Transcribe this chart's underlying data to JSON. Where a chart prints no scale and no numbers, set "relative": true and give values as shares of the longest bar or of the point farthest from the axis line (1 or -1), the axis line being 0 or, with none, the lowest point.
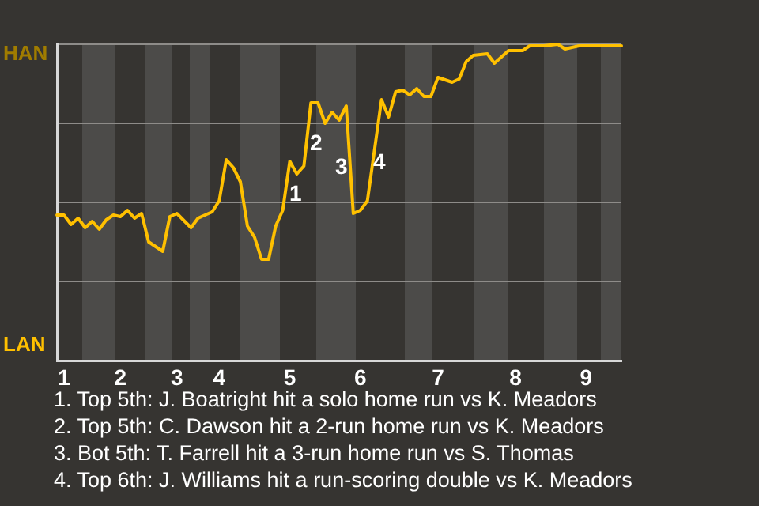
{
  "chart_data": {
    "type": "line",
    "relative": true,
    "grid": "y",
    "marker": "none",
    "line_style": "solid",
    "categories": [
      null,
      "1",
      null,
      null,
      null,
      null,
      null,
      null,
      null,
      "2",
      null,
      null,
      null,
      null,
      null,
      null,
      null,
      "3",
      null,
      null,
      null,
      null,
      null,
      "4",
      null,
      null,
      null,
      null,
      null,
      null,
      null,
      null,
      null,
      "5",
      null,
      null,
      null,
      null,
      null,
      null,
      null,
      null,
      null,
      "6",
      null,
      null,
      null,
      null,
      null,
      null,
      null,
      null,
      null,
      null,
      "7",
      null,
      null,
      null,
      null,
      null,
      null,
      null,
      null,
      null,
      null,
      "8",
      null,
      null,
      null,
      null,
      null,
      null,
      null,
      null,
      null,
      "9",
      null,
      null,
      null,
      null,
      null
    ],
    "series": [
      {
        "color": "#ffc000",
        "values": [
          0.46,
          0.46,
          0.43,
          0.45,
          0.42,
          0.44,
          0.415,
          0.445,
          0.46,
          0.455,
          0.475,
          0.45,
          0.465,
          0.375,
          null,
          0.345,
          0.455,
          0.465,
          null,
          0.42,
          0.45,
          null,
          0.47,
          0.505,
          0.635,
          0.61,
          0.565,
          0.425,
          0.39,
          0.32,
          0.32,
          0.425,
          0.475,
          0.63,
          0.59,
          0.615,
          0.815,
          0.815,
          0.75,
          0.785,
          0.76,
          0.805,
          0.465,
          0.475,
          0.505,
          null,
          0.825,
          0.77,
          0.85,
          0.855,
          0.84,
          0.86,
          0.835,
          0.835,
          0.895,
          null,
          0.88,
          0.89,
          0.945,
          0.965,
          null,
          0.97,
          0.94,
          null,
          0.98,
          null,
          0.98,
          0.995,
          null,
          0.995,
          null,
          1,
          0.985,
          0.99,
          0.995,
          null,
          null,
          null,
          null,
          null,
          0.995
        ]
      }
    ],
    "annotations": [
      "HAN",
      "LAN",
      "1",
      "2",
      "3",
      "4",
      "1. Top 5th: J. Boatright hit a solo home run vs K. Meadors",
      "2. Top 5th: C. Dawson hit a 2-run home run vs K. Meadors",
      "3. Bot 5th: T. Farrell hit a 3-run home run vs S. Thomas",
      "4. Top 6th: J. Williams hit a run-scoring double vs K. Meadors"
    ]
  }
}
